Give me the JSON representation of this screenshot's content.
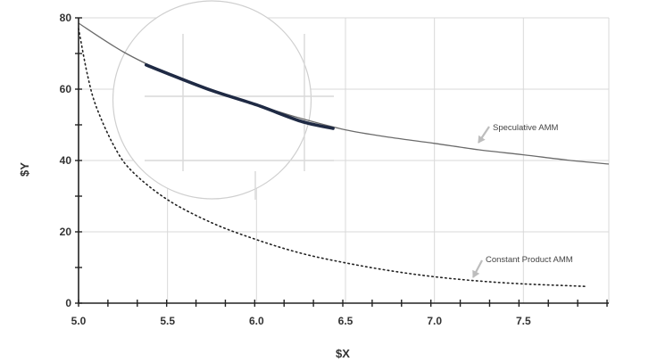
{
  "chart_data": {
    "type": "line",
    "title": "",
    "xlabel": "$X",
    "ylabel": "$Y",
    "xlim": [
      5.0,
      7.98
    ],
    "ylim": [
      0,
      80
    ],
    "grid": true,
    "x_ticks": [
      "5.0",
      "5.5",
      "6.0",
      "6.5",
      "7.0",
      "7.5"
    ],
    "y_ticks": [
      "0",
      "20",
      "40",
      "60",
      "80"
    ],
    "series": [
      {
        "name": "Speculative AMM",
        "style": "solid",
        "color": "#6b6b6b",
        "x": [
          5.0,
          5.25,
          5.5,
          5.75,
          6.0,
          6.25,
          6.5,
          6.75,
          7.0,
          7.25,
          7.5,
          7.75,
          7.98
        ],
        "y": [
          78.5,
          70.5,
          64.4,
          59.6,
          55.6,
          51.8,
          48.6,
          46.5,
          44.8,
          43.0,
          41.6,
          40.1,
          39.0
        ]
      },
      {
        "name": "Constant Product AMM",
        "style": "dotted",
        "color": "#222222",
        "x": [
          5.0,
          5.05,
          5.1,
          5.2,
          5.3,
          5.5,
          5.75,
          6.0,
          6.25,
          6.5,
          6.75,
          7.0,
          7.25,
          7.5,
          7.75,
          7.85
        ],
        "y": [
          77.0,
          64.0,
          55.0,
          44.0,
          37.0,
          29.0,
          22.5,
          17.8,
          14.0,
          11.3,
          9.1,
          7.4,
          6.2,
          5.4,
          4.9,
          4.7
        ]
      },
      {
        "name": "",
        "style": "highlight",
        "color": "#1f2a44",
        "x": [
          5.38,
          5.5,
          5.75,
          6.0,
          6.25,
          6.43
        ],
        "y": [
          66.8,
          64.4,
          59.6,
          55.6,
          51.0,
          49.0
        ]
      }
    ],
    "annotations": [
      {
        "text": "Speculative AMM",
        "target_x": 7.25,
        "target_y": 44.2
      },
      {
        "text": "Constant Product AMM",
        "target_x": 7.22,
        "target_y": 7.0
      }
    ],
    "magnifier": {
      "center_x": 5.75,
      "center_y": 57.0
    }
  },
  "colors": {
    "grid": "#d9d9d9",
    "axis": "#222222",
    "circle": "#cfcfcf",
    "arrow": "#bdbdbd"
  }
}
